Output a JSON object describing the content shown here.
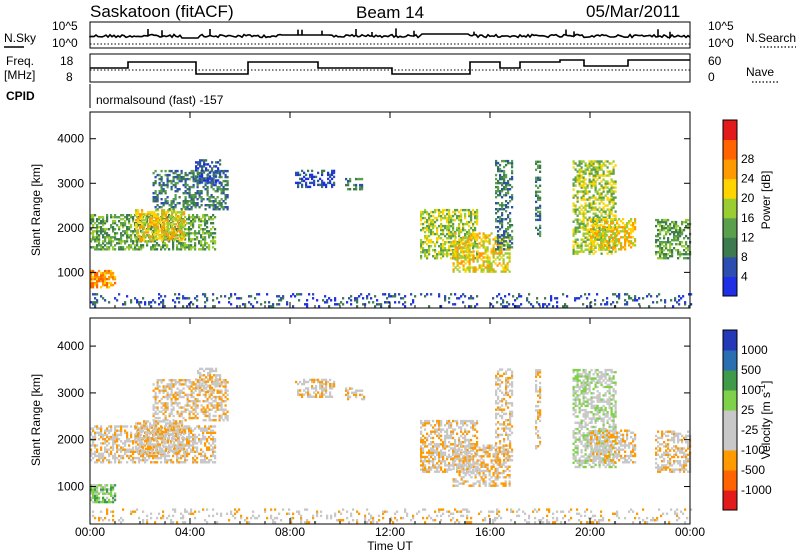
{
  "header": {
    "station": "Saskatoon (fitACF)",
    "beam": "Beam 14",
    "date": "05/Mar/2011"
  },
  "status_panels": {
    "nsky_label": "N.Sky",
    "nsearch_label": "N.Search",
    "noise_ticks": [
      "10^5",
      "10^0"
    ],
    "freq_label": "Freq.",
    "freq_unit": "[MHz]",
    "freq_ticks": [
      "18",
      "8"
    ],
    "nave_label": "Nave",
    "nave_ticks": [
      "60",
      "0"
    ],
    "cpid_label": "CPID",
    "cpid_value": "normalsound (fast) -157"
  },
  "x_axis": {
    "label": "Time UT",
    "ticks": [
      "00:00",
      "04:00",
      "08:00",
      "12:00",
      "16:00",
      "20:00",
      "00:00"
    ]
  },
  "colors": {
    "power_scale": [
      "#1f2fe6",
      "#2b4eb0",
      "#3d7a4e",
      "#5aa04c",
      "#9acd32",
      "#ffd400",
      "#ff9a00",
      "#ff6400",
      "#e31a1c"
    ],
    "velocity_scale": [
      "#e31a1c",
      "#ff6400",
      "#ff9a00",
      "#c8c8c8",
      "#c8c8c8",
      "#7fd14a",
      "#3f9a4a",
      "#2b6fb3",
      "#2339b8"
    ],
    "ground_scatter": "#c8c8c8"
  },
  "chart_data": [
    {
      "type": "heatmap",
      "title": "",
      "ylabel": "Slant Range [km]",
      "xlabel": "",
      "xlim_hours": [
        0,
        24
      ],
      "ylim": [
        200,
        4600
      ],
      "yticks": [
        "1000",
        "2000",
        "3000",
        "4000"
      ],
      "colorbar": {
        "label": "Power [dB]",
        "ticks": [
          "4",
          "8",
          "12",
          "16",
          "20",
          "24",
          "28"
        ]
      }
    },
    {
      "type": "heatmap",
      "title": "",
      "ylabel": "Slant Range [km]",
      "xlabel": "Time UT",
      "xlim_hours": [
        0,
        24
      ],
      "ylim": [
        200,
        4600
      ],
      "yticks": [
        "1000",
        "2000",
        "3000",
        "4000"
      ],
      "colorbar": {
        "label": "Velocity [m s^-1]",
        "ticks": [
          "1000",
          "500",
          "100",
          "25",
          "-25",
          "-100",
          "-500",
          "-1000"
        ]
      }
    }
  ]
}
